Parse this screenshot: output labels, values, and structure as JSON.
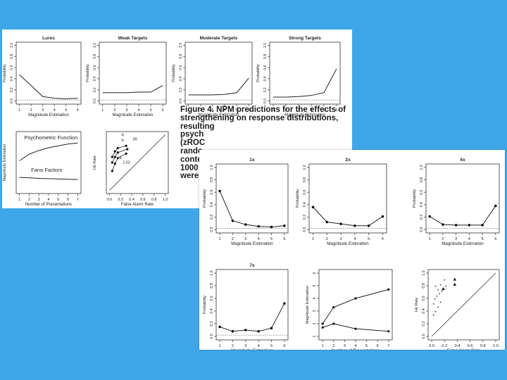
{
  "colors": {
    "background": "#3fa7e8",
    "paper": "#ffffff",
    "ink": "#222222"
  },
  "caption": {
    "label": "Figure 4.",
    "lines": [
      "Figure 4. NPM predictions for the effects of",
      "strengthening on response distributions, resulting",
      "psych",
      "(zROC",
      "rando",
      "conte",
      "1000",
      "were"
    ]
  },
  "chart_data": [
    {
      "panel": "top",
      "type": "line",
      "title": "Lures",
      "xlabel": "Magnitude Estimation",
      "ylabel": "Probability",
      "x": [
        1,
        2,
        3,
        4,
        5,
        6
      ],
      "values": [
        0.47,
        0.28,
        0.08,
        0.05,
        0.04,
        0.05
      ],
      "ylim": [
        0,
        1
      ],
      "yticks": [
        "0.0",
        "0.2",
        "0.4",
        "0.6",
        "0.8",
        "1.0"
      ],
      "xticks": [
        "1",
        "2",
        "3",
        "4",
        "5",
        "6"
      ]
    },
    {
      "panel": "top",
      "type": "line",
      "title": "Weak Targets",
      "xlabel": "Magnitude Estimation",
      "ylabel": "Probability",
      "x": [
        1,
        2,
        3,
        4,
        5,
        6
      ],
      "values": [
        0.15,
        0.15,
        0.15,
        0.16,
        0.16,
        0.28
      ],
      "ylim": [
        0,
        1
      ],
      "yticks": [
        "0.0",
        "0.2",
        "0.4",
        "0.6",
        "0.8",
        "1.0"
      ],
      "xticks": [
        "1",
        "2",
        "3",
        "4",
        "5",
        "6"
      ]
    },
    {
      "panel": "top",
      "type": "line",
      "title": "Moderate Targets",
      "xlabel": "Magnitude Estimation",
      "ylabel": "Probability",
      "x": [
        1,
        2,
        3,
        4,
        5,
        6
      ],
      "values": [
        0.11,
        0.11,
        0.11,
        0.12,
        0.15,
        0.41
      ],
      "ylim": [
        0,
        1
      ],
      "yticks": [
        "0.0",
        "0.2",
        "0.4",
        "0.6",
        "0.8",
        "1.0"
      ],
      "xticks": [
        "1",
        "2",
        "3",
        "4",
        "5",
        "6"
      ]
    },
    {
      "panel": "top",
      "type": "line",
      "title": "Strong Targets",
      "xlabel": "Magnitude Estimation",
      "ylabel": "Probability",
      "x": [
        1,
        2,
        3,
        4,
        5,
        6
      ],
      "values": [
        0.07,
        0.07,
        0.08,
        0.1,
        0.15,
        0.58
      ],
      "ylim": [
        0,
        1
      ],
      "yticks": [
        "0.0",
        "0.2",
        "0.4",
        "0.6",
        "0.8",
        "1.0"
      ],
      "xticks": [
        "1",
        "2",
        "3",
        "4",
        "5",
        "6"
      ]
    },
    {
      "panel": "top",
      "type": "line",
      "title": "",
      "xlabel": "Number of Presentations",
      "ylabel": "Magnitude Estimation",
      "x": [
        1,
        2,
        3,
        4,
        5,
        6,
        7
      ],
      "annotations": [
        "Psychometric Function",
        "Fano Factors"
      ],
      "series": [
        {
          "values": [
            3.2,
            3.9,
            4.3,
            4.6,
            4.8,
            5.0,
            5.1
          ]
        },
        {
          "values": [
            1.4,
            1.36,
            1.3,
            1.27,
            1.24,
            1.2,
            1.17
          ]
        }
      ],
      "ylim": [
        0,
        6
      ],
      "xticks": [
        "1",
        "2",
        "3",
        "4",
        "5",
        "6",
        "7"
      ]
    },
    {
      "panel": "top",
      "type": "scatter",
      "title": "",
      "xlabel": "False Alarm Rate",
      "ylabel": "Hit Rate",
      "xticks": [
        "0.0",
        "0.2",
        "0.4",
        "0.6",
        "0.8",
        "1.0"
      ],
      "annotations": [
        "b",
        "b",
        "b",
        ".99",
        ".1.02"
      ],
      "series": [
        {
          "x": [
            0.05,
            0.1,
            0.15,
            0.3
          ],
          "y": [
            0.6,
            0.7,
            0.76,
            0.8
          ]
        },
        {
          "x": [
            0.05,
            0.1,
            0.15,
            0.32
          ],
          "y": [
            0.5,
            0.6,
            0.68,
            0.74
          ]
        },
        {
          "x": [
            0.05,
            0.1,
            0.15,
            0.3
          ],
          "y": [
            0.35,
            0.48,
            0.58,
            0.66
          ]
        }
      ]
    },
    {
      "panel": "bottom",
      "type": "line",
      "title": "1x",
      "xlabel": "Magnitude Estimation",
      "ylabel": "Probability",
      "x": [
        1,
        2,
        3,
        4,
        5,
        6
      ],
      "values": [
        0.62,
        0.14,
        0.08,
        0.05,
        0.04,
        0.06
      ],
      "ylim": [
        0,
        1
      ],
      "yticks": [
        "0.0",
        "0.2",
        "0.4",
        "0.6",
        "0.8",
        "1.0"
      ],
      "xticks": [
        "1",
        "2",
        "3",
        "4",
        "5",
        "6"
      ]
    },
    {
      "panel": "bottom",
      "type": "line",
      "title": "2x",
      "xlabel": "Magnitude Estimation",
      "ylabel": "Probability",
      "x": [
        1,
        2,
        3,
        4,
        5,
        6
      ],
      "values": [
        0.36,
        0.12,
        0.09,
        0.06,
        0.06,
        0.21
      ],
      "ylim": [
        0,
        1
      ],
      "yticks": [
        "0.0",
        "0.2",
        "0.4",
        "0.6",
        "0.8",
        "1.0"
      ],
      "xticks": [
        "1",
        "2",
        "3",
        "4",
        "5",
        "6"
      ]
    },
    {
      "panel": "bottom",
      "type": "line",
      "title": "4x",
      "xlabel": "Magnitude Estimation",
      "ylabel": "Probability",
      "x": [
        1,
        2,
        3,
        4,
        5,
        6
      ],
      "values": [
        0.21,
        0.08,
        0.07,
        0.07,
        0.07,
        0.38
      ],
      "ylim": [
        0,
        1
      ],
      "yticks": [
        "0.0",
        "0.2",
        "0.4",
        "0.6",
        "0.8",
        "1.0"
      ],
      "xticks": [
        "1",
        "2",
        "3",
        "4",
        "5",
        "6"
      ]
    },
    {
      "panel": "bottom",
      "type": "line",
      "title": "7x",
      "xlabel": "Magnitude Estimation",
      "ylabel": "Probability",
      "x": [
        1,
        2,
        3,
        4,
        5,
        6
      ],
      "values": [
        0.15,
        0.08,
        0.1,
        0.08,
        0.13,
        0.52
      ],
      "ylim": [
        0,
        1
      ],
      "yticks": [
        "0.0",
        "0.2",
        "0.4",
        "0.6",
        "0.8",
        "1.0"
      ],
      "xticks": [
        "1",
        "2",
        "3",
        "4",
        "5",
        "6"
      ]
    },
    {
      "panel": "bottom",
      "type": "line",
      "title": "",
      "xlabel": "Number of Presentations",
      "ylabel": "Magnitude Estimation",
      "x": [
        1,
        2,
        3,
        4,
        5,
        6,
        7
      ],
      "series": [
        {
          "values": [
            2.0,
            3.3,
            4.0,
            4.7
          ],
          "x": [
            1,
            2,
            4,
            7
          ]
        },
        {
          "values": [
            1.7,
            2.0,
            1.6,
            1.4
          ],
          "x": [
            1,
            2,
            4,
            7
          ]
        }
      ],
      "ylim": [
        1,
        6
      ],
      "yticks": [
        "1",
        "2",
        "3",
        "4",
        "5",
        "6"
      ],
      "xticks": [
        "1",
        "2",
        "3",
        "4",
        "5",
        "6",
        "7"
      ]
    },
    {
      "panel": "bottom",
      "type": "scatter",
      "title": "",
      "xlabel": "False Alarm Rate",
      "ylabel": "Hit Rate",
      "xticks": [
        "0.0",
        "0.2",
        "0.4",
        "0.6",
        "0.8",
        "1.0"
      ],
      "yticks": [
        "0.0",
        "0.2",
        "0.4",
        "0.6",
        "0.8",
        "1.0"
      ],
      "series": [
        {
          "marker": "triangle",
          "x": [
            0.36,
            0.36,
            0.18
          ],
          "y": [
            0.9,
            0.82,
            0.75
          ]
        },
        {
          "marker": "star",
          "x": [
            0.06,
            0.1,
            0.14,
            0.2,
            0.22
          ],
          "y": [
            0.78,
            0.72,
            0.8,
            0.88,
            0.78
          ]
        },
        {
          "marker": "star",
          "x": [
            0.03,
            0.05,
            0.08,
            0.12,
            0.16
          ],
          "y": [
            0.5,
            0.58,
            0.62,
            0.66,
            0.7
          ]
        },
        {
          "marker": "star",
          "x": [
            0.03,
            0.06,
            0.1,
            0.14
          ],
          "y": [
            0.33,
            0.38,
            0.45,
            0.53
          ]
        }
      ]
    }
  ]
}
